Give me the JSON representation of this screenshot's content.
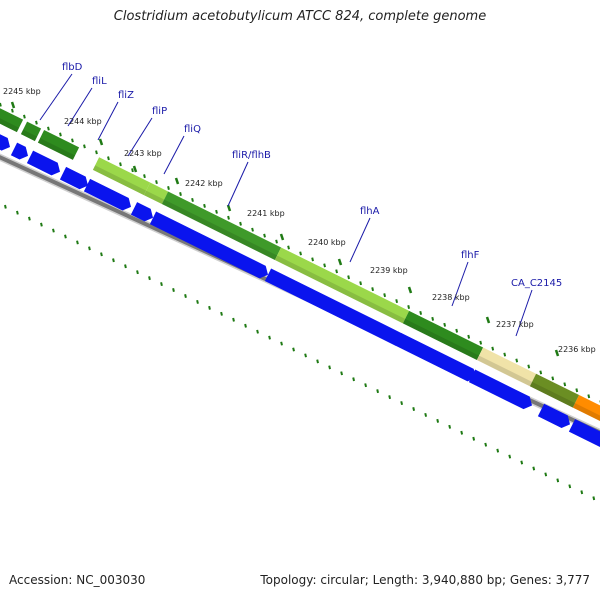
{
  "title": "Clostridium acetobutylicum ATCC 824, complete genome",
  "footer": {
    "accession": "Accession: NC_003030",
    "summary": "Topology: circular; Length: 3,940,880 bp; Genes: 3,777"
  },
  "genes": [
    {
      "name": "flbD",
      "color": "#2e8b1e"
    },
    {
      "name": "fliL",
      "color": "#2e8b1e"
    },
    {
      "name": "fliZ",
      "color": "#2e8b1e"
    },
    {
      "name": "fliP",
      "color": "#9bd84a"
    },
    {
      "name": "fliQ",
      "color": "#9bd84a"
    },
    {
      "name": "fliR/flhB",
      "color": "#3f9a2a"
    },
    {
      "name": "flhA",
      "color": "#9bd84a"
    },
    {
      "name": "flhF",
      "color": "#2e8b1e"
    },
    {
      "name": "CA_C2145",
      "color": "#f0e3a8"
    }
  ],
  "ticks": [
    "2245 kbp",
    "2244 kbp",
    "2243 kbp",
    "2242 kbp",
    "2241 kbp",
    "2240 kbp",
    "2239 kbp",
    "2238 kbp",
    "2237 kbp",
    "2236 kbp"
  ],
  "colors": {
    "strand_arrow": "#0a14ee",
    "backbone": "#777777",
    "tick_mark": "#1f7a14",
    "label_line": "#1a1aa8",
    "orange_segment": "#ff8c00",
    "olive_segment": "#6b8e23"
  }
}
